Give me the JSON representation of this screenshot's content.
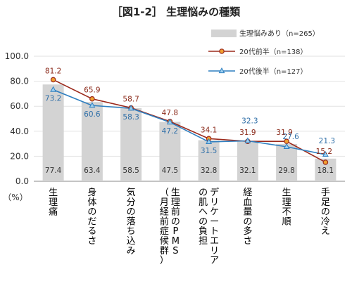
{
  "title": "［図1-2］ 生理悩みの種類",
  "unit_label": "（%）",
  "colors": {
    "bar": "#d3d3d3",
    "line1": "#9c2a1c",
    "marker1_fill": "#f0a030",
    "line2": "#2f7fc0",
    "marker2_fill": "#9fd0f0",
    "val1": "#8b2a1a",
    "val2": "#2f6fa8",
    "val_bar": "#333333"
  },
  "chart_data": {
    "type": "bar",
    "title": "［図1-2］ 生理悩みの種類",
    "categories": [
      "生理痛",
      "身体のだるさ",
      "気分の落ち込み",
      "生理前のPMS（月経前症候群）",
      "デリケートエリアの肌への負担",
      "経血量の多さ",
      "生理不順",
      "手足の冷え"
    ],
    "ylim": [
      0,
      100
    ],
    "yticks": [
      "0.0",
      "20.0",
      "40.0",
      "60.0",
      "80.0",
      "100.0"
    ],
    "legend_position": "top-right",
    "series": [
      {
        "name": "生理悩みあり（n=265）",
        "kind": "bar",
        "values": [
          77.4,
          63.4,
          58.5,
          47.5,
          32.8,
          32.1,
          29.8,
          18.1
        ],
        "labels": [
          "77.4",
          "63.4",
          "58.5",
          "47.5",
          "32.8",
          "32.1",
          "29.8",
          "18.1"
        ]
      },
      {
        "name": "20代前半（n=138）",
        "kind": "line",
        "values": [
          81.2,
          65.9,
          58.7,
          47.8,
          34.1,
          31.9,
          31.9,
          15.2
        ],
        "labels": [
          "81.2",
          "65.9",
          "58.7",
          "47.8",
          "34.1",
          "31.9",
          "31.9",
          "15.2"
        ]
      },
      {
        "name": "20代後半（n=127）",
        "kind": "line",
        "values": [
          73.2,
          60.6,
          58.3,
          47.2,
          31.5,
          32.3,
          27.6,
          21.3
        ],
        "labels": [
          "73.2",
          "60.6",
          "58.3",
          "47.2",
          "31.5",
          "32.3",
          "27.6",
          "21.3"
        ]
      }
    ]
  }
}
